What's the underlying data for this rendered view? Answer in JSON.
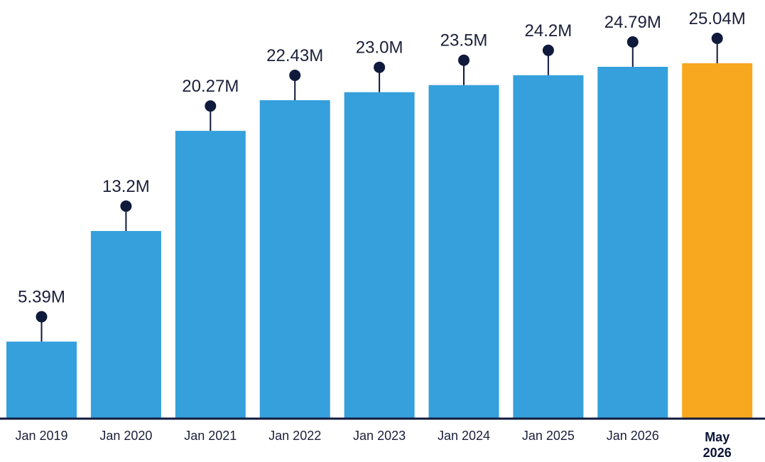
{
  "chart_data": {
    "type": "bar",
    "title": "",
    "xlabel": "",
    "ylabel": "",
    "categories": [
      "Jan 2019",
      "Jan 2020",
      "Jan 2021",
      "Jan 2022",
      "Jan 2023",
      "Jan 2024",
      "Jan 2025",
      "Jan 2026",
      "May 2026"
    ],
    "values": [
      5.39,
      13.2,
      20.27,
      22.43,
      23.0,
      23.5,
      24.2,
      24.79,
      25.04
    ],
    "value_labels": [
      "5.39M",
      "13.2M",
      "20.27M",
      "22.43M",
      "23.0M",
      "23.5M",
      "24.2M",
      "24.79M",
      "25.04M"
    ],
    "ylim": [
      0,
      27.5
    ],
    "grid": false,
    "legend": "none",
    "highlight_index": 8,
    "colors": {
      "bar": "#35a0dc",
      "highlight_bar": "#f7a81e",
      "marker": "#0f1a3c",
      "axis": "#0f1a3c"
    }
  }
}
